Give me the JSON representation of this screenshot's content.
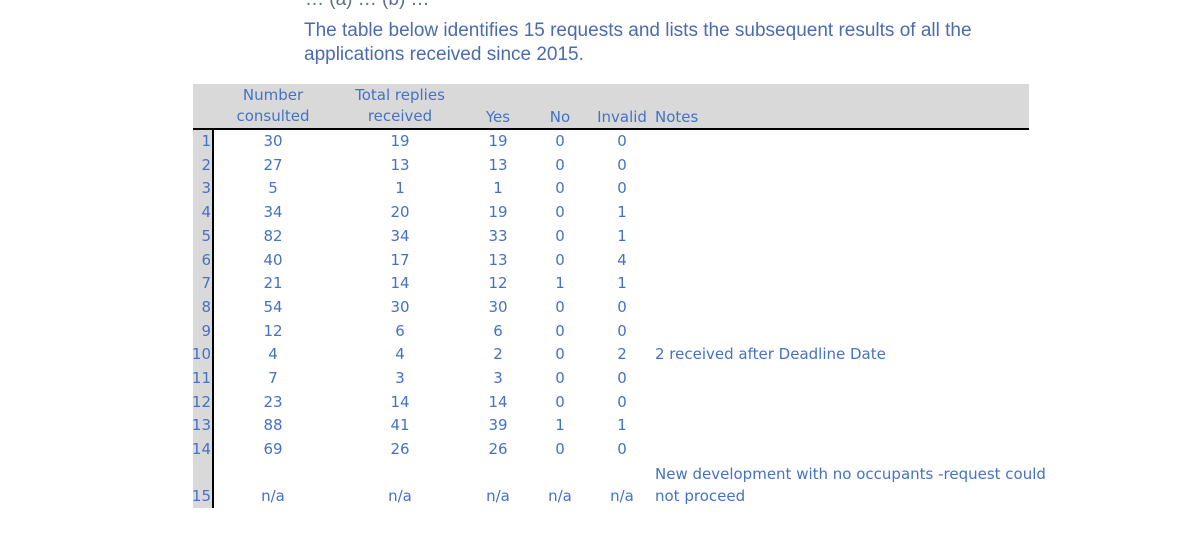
{
  "cut_text": "… (a) … (b) …",
  "intro": "The table below identifies 15 requests and lists the subsequent results of all the applications received since 2015.",
  "table": {
    "headers": {
      "consulted_line1": "Number",
      "consulted_line2": "consulted",
      "replies_line1": "Total replies",
      "replies_line2": "received",
      "yes": "Yes",
      "no": "No",
      "invalid": "Invalid",
      "notes": "Notes"
    },
    "rows": [
      {
        "idx": "1",
        "consulted": "30",
        "replies": "19",
        "yes": "19",
        "no": "0",
        "invalid": "0",
        "notes": ""
      },
      {
        "idx": "2",
        "consulted": "27",
        "replies": "13",
        "yes": "13",
        "no": "0",
        "invalid": "0",
        "notes": ""
      },
      {
        "idx": "3",
        "consulted": "5",
        "replies": "1",
        "yes": "1",
        "no": "0",
        "invalid": "0",
        "notes": ""
      },
      {
        "idx": "4",
        "consulted": "34",
        "replies": "20",
        "yes": "19",
        "no": "0",
        "invalid": "1",
        "notes": ""
      },
      {
        "idx": "5",
        "consulted": "82",
        "replies": "34",
        "yes": "33",
        "no": "0",
        "invalid": "1",
        "notes": ""
      },
      {
        "idx": "6",
        "consulted": "40",
        "replies": "17",
        "yes": "13",
        "no": "0",
        "invalid": "4",
        "notes": ""
      },
      {
        "idx": "7",
        "consulted": "21",
        "replies": "14",
        "yes": "12",
        "no": "1",
        "invalid": "1",
        "notes": ""
      },
      {
        "idx": "8",
        "consulted": "54",
        "replies": "30",
        "yes": "30",
        "no": "0",
        "invalid": "0",
        "notes": ""
      },
      {
        "idx": "9",
        "consulted": "12",
        "replies": "6",
        "yes": "6",
        "no": "0",
        "invalid": "0",
        "notes": ""
      },
      {
        "idx": "10",
        "consulted": "4",
        "replies": "4",
        "yes": "2",
        "no": "0",
        "invalid": "2",
        "notes": "2 received after Deadline Date"
      },
      {
        "idx": "11",
        "consulted": "7",
        "replies": "3",
        "yes": "3",
        "no": "0",
        "invalid": "0",
        "notes": ""
      },
      {
        "idx": "12",
        "consulted": "23",
        "replies": "14",
        "yes": "14",
        "no": "0",
        "invalid": "0",
        "notes": ""
      },
      {
        "idx": "13",
        "consulted": "88",
        "replies": "41",
        "yes": "39",
        "no": "1",
        "invalid": "1",
        "notes": ""
      },
      {
        "idx": "14",
        "consulted": "69",
        "replies": "26",
        "yes": "26",
        "no": "0",
        "invalid": "0",
        "notes": ""
      }
    ],
    "last_row": {
      "idx": "15",
      "consulted": "n/a",
      "replies": "n/a",
      "yes": "n/a",
      "no": "n/a",
      "invalid": "n/a",
      "notes_line1": "New development with no occupants -request could",
      "notes_line2": "not proceed"
    }
  }
}
